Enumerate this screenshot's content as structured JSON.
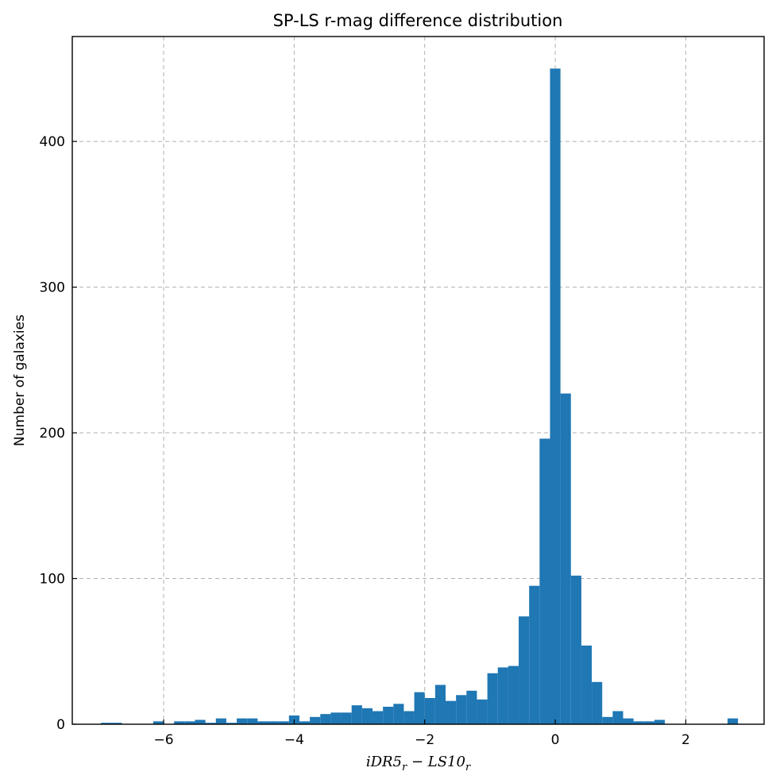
{
  "chart_data": {
    "type": "bar",
    "title": "SP-LS r-mag difference distribution",
    "xlabel": {
      "main1": "iDR5",
      "sub1": "r",
      "op": " − ",
      "main2": "LS10",
      "sub2": "r"
    },
    "ylabel": "Number of galaxies",
    "xlim": [
      -7.4,
      3.2
    ],
    "ylim": [
      0,
      472
    ],
    "x_ticks": [
      {
        "v": -6,
        "label": "−6"
      },
      {
        "v": -4,
        "label": "−4"
      },
      {
        "v": -2,
        "label": "−2"
      },
      {
        "v": 0,
        "label": "0"
      },
      {
        "v": 2,
        "label": "2"
      }
    ],
    "y_ticks": [
      {
        "v": 0,
        "label": "0"
      },
      {
        "v": 100,
        "label": "100"
      },
      {
        "v": 200,
        "label": "200"
      },
      {
        "v": 300,
        "label": "300"
      },
      {
        "v": 400,
        "label": "400"
      }
    ],
    "grid": true,
    "color": "#1f77b4",
    "bin_start": -6.96,
    "bin_width": 0.16,
    "counts": [
      1,
      1,
      0,
      0,
      0,
      2,
      0,
      2,
      2,
      3,
      1,
      4,
      1,
      4,
      4,
      2,
      2,
      2,
      6,
      2,
      5,
      7,
      8,
      8,
      13,
      11,
      9,
      12,
      14,
      9,
      22,
      18,
      27,
      16,
      20,
      23,
      17,
      35,
      39,
      40,
      74,
      95,
      196,
      450,
      227,
      102,
      54,
      29,
      5,
      9,
      4,
      2,
      2,
      3,
      0,
      0,
      0,
      0,
      0,
      0,
      4
    ]
  }
}
